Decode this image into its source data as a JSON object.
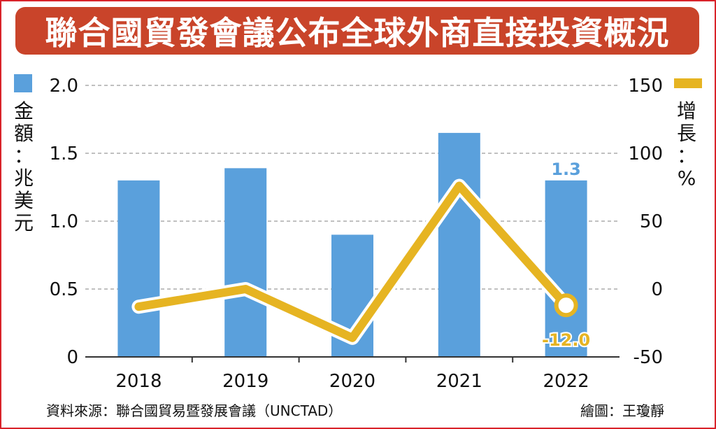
{
  "header": {
    "title": "聯合國貿發會議公布全球外商直接投資概況"
  },
  "footer": {
    "source": "資料來源：聯合國貿易暨發展會議（UNCTAD）",
    "credit": "繪圖：王瓊靜"
  },
  "legend": {
    "bar_label_chars": [
      "金",
      "額",
      "：",
      "兆",
      "美",
      "元"
    ],
    "line_label_chars": [
      "增",
      "長",
      "：",
      "%"
    ]
  },
  "colors": {
    "bar": "#5aa0dc",
    "line": "#e6b422",
    "accent": "#c9442a"
  },
  "chart_data": {
    "type": "bar",
    "categories": [
      "2018",
      "2019",
      "2020",
      "2021",
      "2022"
    ],
    "series": [
      {
        "values": [
          1.3,
          1.39,
          0.9,
          1.65,
          1.3
        ],
        "axis": "left",
        "kind": "bar"
      },
      {
        "values": [
          -13,
          0,
          -36,
          76,
          -12
        ],
        "axis": "right",
        "kind": "line"
      }
    ],
    "left_axis": {
      "ylim": [
        0,
        2.0
      ],
      "ticks": [
        "0",
        "0.5",
        "1.0",
        "1.5",
        "2.0"
      ]
    },
    "right_axis": {
      "ylim": [
        -50,
        150
      ],
      "ticks": [
        "-50",
        "0",
        "50",
        "100",
        "150"
      ]
    },
    "data_labels": {
      "bar_2022": "1.3",
      "line_2022": "-12.0"
    },
    "grid": true
  }
}
